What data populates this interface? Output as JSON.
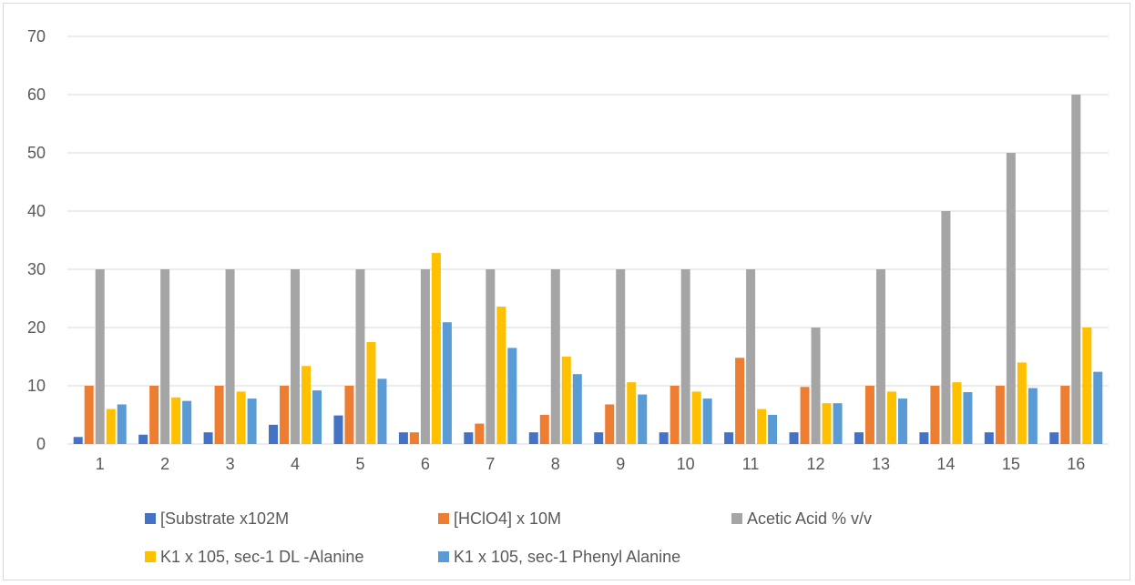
{
  "chart_data": {
    "type": "bar",
    "title": "",
    "xlabel": "",
    "ylabel": "",
    "ylim": [
      0,
      70
    ],
    "yticks": [
      0,
      10,
      20,
      30,
      40,
      50,
      60,
      70
    ],
    "grid": true,
    "legend_position": "bottom",
    "categories": [
      "1",
      "2",
      "3",
      "4",
      "5",
      "6",
      "7",
      "8",
      "9",
      "10",
      "11",
      "12",
      "13",
      "14",
      "15",
      "16"
    ],
    "series": [
      {
        "name": "[Substrate x102M",
        "color": "#4472c4",
        "values": [
          1.2,
          1.6,
          2,
          3.3,
          4.9,
          2,
          2,
          2,
          2,
          2,
          2,
          2,
          2,
          2,
          2,
          2
        ]
      },
      {
        "name": "[HClO4] x 10M",
        "color": "#ed7d31",
        "values": [
          10,
          10,
          10,
          10,
          10,
          2,
          3.5,
          5,
          6.8,
          10,
          14.8,
          9.8,
          10,
          10,
          10,
          10
        ]
      },
      {
        "name": "Acetic Acid % v/v",
        "color": "#a5a5a5",
        "values": [
          30,
          30,
          30,
          30,
          30,
          30,
          30,
          30,
          30,
          30,
          30,
          20,
          30,
          40,
          50,
          60
        ]
      },
      {
        "name": "K1 x 105, sec-1 DL -Alanine",
        "color": "#ffc000",
        "values": [
          6,
          8,
          9,
          13.4,
          17.5,
          32.8,
          23.6,
          15,
          10.6,
          9,
          6,
          7,
          9,
          10.6,
          14,
          20
        ]
      },
      {
        "name": "K1 x 105, sec-1 Phenyl Alanine",
        "color": "#5b9bd5",
        "values": [
          6.8,
          7.4,
          7.8,
          9.2,
          11.2,
          20.9,
          16.5,
          12,
          8.5,
          7.8,
          5,
          7,
          7.8,
          8.9,
          9.6,
          12.4
        ]
      }
    ]
  }
}
